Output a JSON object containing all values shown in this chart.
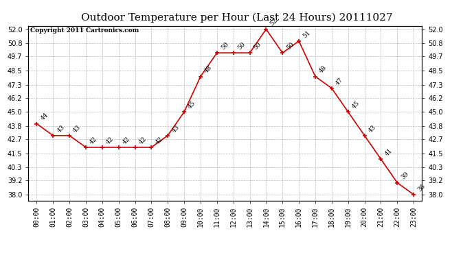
{
  "title": "Outdoor Temperature per Hour (Last 24 Hours) 20111027",
  "copyright": "Copyright 2011 Cartronics.com",
  "hours": [
    "00:00",
    "01:00",
    "02:00",
    "03:00",
    "04:00",
    "05:00",
    "06:00",
    "07:00",
    "08:00",
    "09:00",
    "10:00",
    "11:00",
    "12:00",
    "13:00",
    "14:00",
    "15:00",
    "16:00",
    "17:00",
    "18:00",
    "19:00",
    "20:00",
    "21:00",
    "22:00",
    "23:00"
  ],
  "temps": [
    44,
    43,
    43,
    42,
    42,
    42,
    42,
    42,
    43,
    45,
    48,
    50,
    50,
    50,
    52,
    50,
    51,
    48,
    47,
    45,
    43,
    41,
    39,
    38
  ],
  "yticks": [
    38.0,
    39.2,
    40.3,
    41.5,
    42.7,
    43.8,
    45.0,
    46.2,
    47.3,
    48.5,
    49.7,
    50.8,
    52.0
  ],
  "ymin": 37.5,
  "ymax": 52.3,
  "line_color": "#cc0000",
  "bg_color": "#ffffff",
  "grid_color": "#aaaaaa",
  "title_fontsize": 11,
  "copyright_fontsize": 6.5,
  "label_fontsize": 6.5,
  "tick_fontsize": 7
}
